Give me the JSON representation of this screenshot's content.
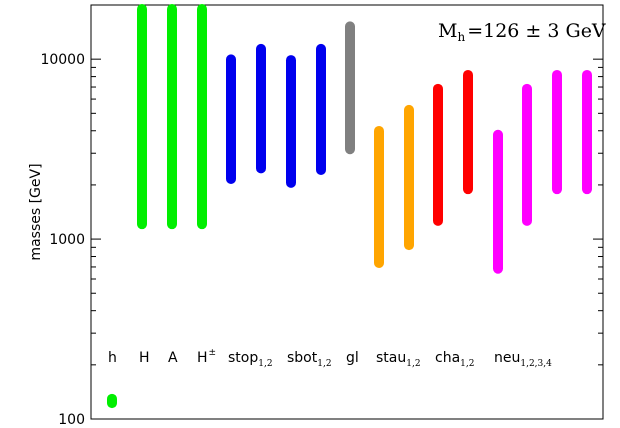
{
  "chart_data": {
    "type": "bar",
    "title": "",
    "ylabel": "masses [GeV]",
    "yscale": "log",
    "ylim": [
      100,
      20000
    ],
    "yticks": [
      {
        "value": 100,
        "label": "100"
      },
      {
        "value": 1000,
        "label": "1000"
      },
      {
        "value": 10000,
        "label": "10000"
      }
    ],
    "annotation": {
      "main": "M",
      "sub": "h",
      "rest": "=126 ± 3 GeV"
    },
    "categories": [
      {
        "label": "h",
        "sub": ""
      },
      {
        "label": "H",
        "sub": ""
      },
      {
        "label": "A",
        "sub": ""
      },
      {
        "label": "H",
        "sup": "±"
      },
      {
        "label": "stop",
        "sub": "1,2"
      },
      {
        "label": "sbot",
        "sub": "1,2"
      },
      {
        "label": "gl",
        "sub": ""
      },
      {
        "label": "stau",
        "sub": "1,2"
      },
      {
        "label": "cha",
        "sub": "1,2"
      },
      {
        "label": "neu",
        "sub": "1,2,3,4"
      }
    ],
    "series": [
      {
        "category": "h",
        "color": "#00ee00",
        "ranges": [
          [
            123,
            129
          ]
        ]
      },
      {
        "category": "H",
        "color": "#00ee00",
        "ranges": [
          [
            1150,
            20000
          ]
        ]
      },
      {
        "category": "A",
        "color": "#00ee00",
        "ranges": [
          [
            1150,
            20000
          ]
        ]
      },
      {
        "category": "H±",
        "color": "#00ee00",
        "ranges": [
          [
            1150,
            20000
          ]
        ]
      },
      {
        "category": "stop1,2",
        "color": "#0000ee",
        "ranges": [
          [
            2050,
            10500
          ],
          [
            2350,
            12000
          ]
        ]
      },
      {
        "category": "sbot1,2",
        "color": "#0000ee",
        "ranges": [
          [
            1950,
            10400
          ],
          [
            2300,
            12000
          ]
        ]
      },
      {
        "category": "gl",
        "color": "#808080",
        "ranges": [
          [
            3000,
            16000
          ]
        ]
      },
      {
        "category": "stau1,2",
        "color": "#ffa500",
        "ranges": [
          [
            700,
            4200
          ],
          [
            880,
            5500
          ]
        ]
      },
      {
        "category": "cha1,2",
        "color": "#ff0000",
        "ranges": [
          [
            1200,
            7200
          ],
          [
            1800,
            8600
          ]
        ]
      },
      {
        "category": "neu1,2,3,4",
        "color": "#ff00ff",
        "ranges": [
          [
            650,
            4000
          ],
          [
            1200,
            7200
          ],
          [
            1800,
            8600
          ],
          [
            1800,
            8600
          ]
        ]
      }
    ]
  }
}
